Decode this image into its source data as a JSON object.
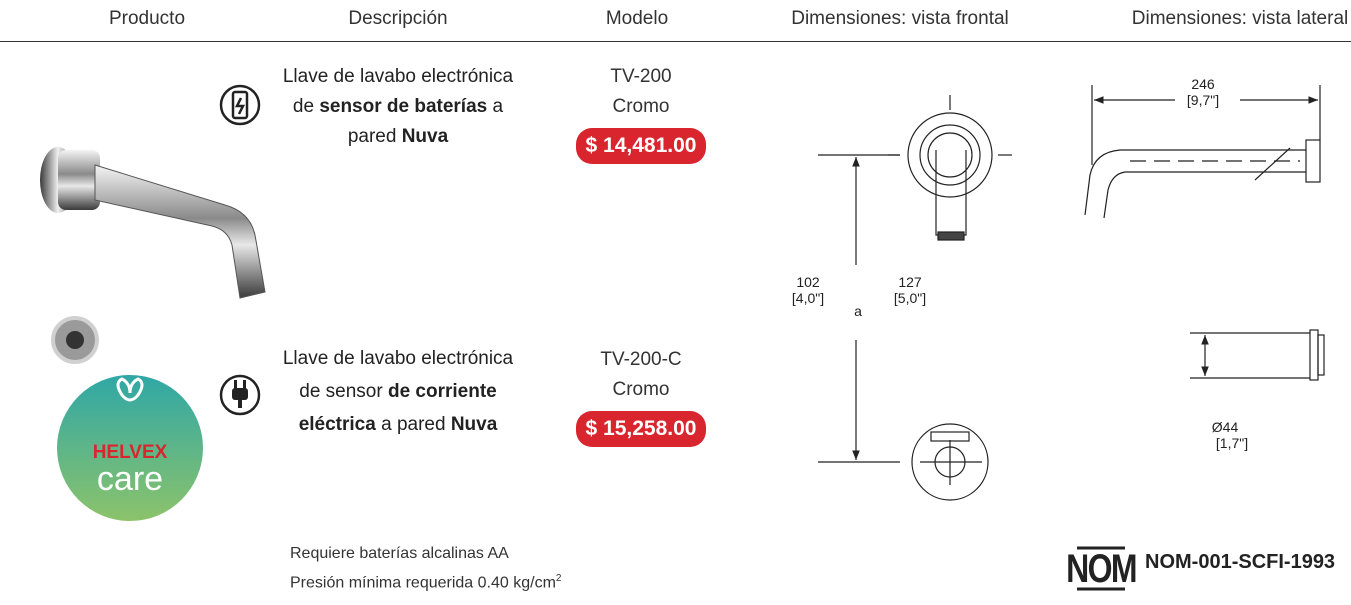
{
  "header": {
    "columns": [
      "Producto",
      "Descripción",
      "Modelo",
      "Dimensiones: vista frontal",
      "Dimensiones: vista lateral"
    ]
  },
  "products": [
    {
      "description": [
        "Llave de lavabo electrónica de ",
        "sensor de baterías",
        " a pared ",
        "Nuva"
      ],
      "model": "TV-200",
      "finish": "Cromo",
      "price": "$ 14,481.00"
    },
    {
      "description": [
        "Llave de lavabo electrónica de sensor ",
        "de corriente eléctrica",
        " a pared ",
        "Nuva"
      ],
      "model": "TV-200-C",
      "finish": "Cromo",
      "price": "$ 15,258.00"
    }
  ],
  "dimensions": {
    "front": {
      "height": "102",
      "height_in": "[4,0\"]",
      "depth": "127",
      "depth_in": "[5,0\"]",
      "label": "a"
    },
    "side": {
      "length": "246",
      "length_in": "[9,7\"]",
      "diameter": "Ø44",
      "diameter_in": "[1,7\"]"
    }
  },
  "brand": {
    "name": "HELVEX",
    "sub": "care"
  },
  "notes": [
    "Requiere baterías alcalinas AA",
    {
      "text": "Presión mínima requerida 0.40 kg/cm",
      "sup": "2"
    }
  ],
  "certification": {
    "mark": "NOM",
    "code": "NOM-001-SCFI-1993"
  }
}
